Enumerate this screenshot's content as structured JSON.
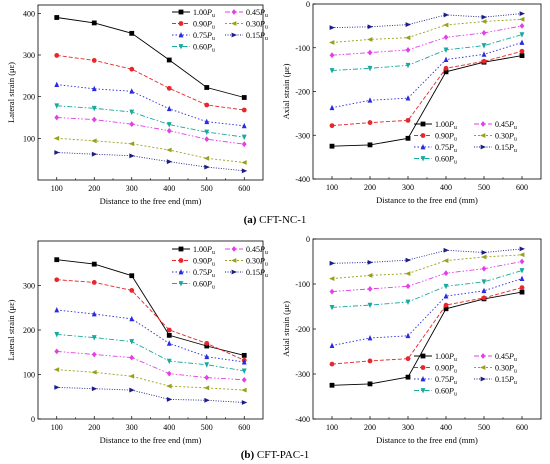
{
  "legend_labels": [
    "1.00",
    "0.90",
    "0.75",
    "0.60",
    "0.45",
    "0.30",
    "0.15"
  ],
  "legend_symbol": "P",
  "legend_subscript": "u",
  "styles": [
    {
      "color": "#000000",
      "dash": "",
      "marker": "square"
    },
    {
      "color": "#e8262b",
      "dash": "4,2",
      "marker": "circle"
    },
    {
      "color": "#2a2ae0",
      "dash": "1.5,2",
      "marker": "triangle"
    },
    {
      "color": "#16a99c",
      "dash": "5,2,1.5,2",
      "marker": "tri-down"
    },
    {
      "color": "#e23fe6",
      "dash": "5,2,1.5,2,1.5,2",
      "marker": "diamond"
    },
    {
      "color": "#9aa01a",
      "dash": "2,2",
      "marker": "tri-left"
    },
    {
      "color": "#1c1c8a",
      "dash": "1,1.5",
      "marker": "tri-right"
    }
  ],
  "captions": [
    {
      "label": "(a)",
      "text": "CFT-NC-1"
    },
    {
      "label": "(b)",
      "text": "CFT-PAC-1"
    }
  ],
  "chart_data": [
    {
      "type": "line",
      "xlabel": "Distance to the free end (mm)",
      "ylabel": "Lateral strain (με)",
      "x": [
        100,
        200,
        300,
        400,
        500,
        600
      ],
      "xticks": [
        "100",
        "200",
        "300",
        "400",
        "500",
        "600"
      ],
      "yticks": [
        "100",
        "200",
        "300",
        "400"
      ],
      "ylim": [
        0,
        420
      ],
      "legend": "top-right",
      "series": [
        {
          "values": [
            390,
            377,
            352,
            288,
            222,
            198
          ]
        },
        {
          "values": [
            299,
            287,
            266,
            220,
            180,
            168
          ]
        },
        {
          "values": [
            229,
            219,
            213,
            171,
            140,
            130
          ]
        },
        {
          "values": [
            178,
            172,
            163,
            133,
            115,
            103
          ]
        },
        {
          "values": [
            150,
            145,
            134,
            118,
            98,
            86
          ]
        },
        {
          "values": [
            100,
            94,
            87,
            72,
            52,
            42
          ]
        },
        {
          "values": [
            66,
            62,
            58,
            44,
            31,
            22
          ]
        }
      ]
    },
    {
      "type": "line",
      "xlabel": "Distance to the free end (mm)",
      "ylabel": "Axial strain (με)",
      "x": [
        100,
        200,
        300,
        400,
        500,
        600
      ],
      "xticks": [
        "100",
        "200",
        "300",
        "400",
        "500",
        "600"
      ],
      "yticks": [
        "0",
        "-100",
        "-200",
        "-300",
        "-400"
      ],
      "ylim": [
        -400,
        0
      ],
      "legend": "top-left",
      "series": [
        {
          "values": [
            -325,
            -322,
            -307,
            -155,
            -133,
            -118
          ]
        },
        {
          "values": [
            -278,
            -271,
            -266,
            -147,
            -131,
            -108
          ]
        },
        {
          "values": [
            -237,
            -220,
            -215,
            -127,
            -115,
            -88
          ]
        },
        {
          "values": [
            -152,
            -147,
            -140,
            -105,
            -95,
            -70
          ]
        },
        {
          "values": [
            -117,
            -111,
            -105,
            -76,
            -66,
            -50
          ]
        },
        {
          "values": [
            -88,
            -81,
            -77,
            -48,
            -40,
            -35
          ]
        },
        {
          "values": [
            -54,
            -52,
            -47,
            -25,
            -30,
            -22
          ]
        }
      ]
    },
    {
      "type": "line",
      "xlabel": "Distance to the free end (mm)",
      "ylabel": "Lateral strain (με)",
      "x": [
        100,
        200,
        300,
        400,
        500,
        600
      ],
      "xticks": [
        "100",
        "200",
        "300",
        "400",
        "500",
        "600"
      ],
      "yticks": [
        "0",
        "100",
        "200",
        "300"
      ],
      "ylim": [
        0,
        400
      ],
      "legend": "top-right",
      "series": [
        {
          "values": [
            358,
            348,
            322,
            188,
            164,
            143
          ]
        },
        {
          "values": [
            313,
            307,
            289,
            200,
            170,
            132
          ]
        },
        {
          "values": [
            245,
            236,
            225,
            170,
            140,
            128
          ]
        },
        {
          "values": [
            190,
            183,
            174,
            130,
            122,
            108
          ]
        },
        {
          "values": [
            152,
            145,
            138,
            102,
            93,
            88
          ]
        },
        {
          "values": [
            111,
            105,
            96,
            74,
            70,
            65
          ]
        },
        {
          "values": [
            71,
            68,
            65,
            44,
            42,
            37
          ]
        }
      ]
    },
    {
      "type": "line",
      "xlabel": "Distance to the free end (mm)",
      "ylabel": "Axial strain (με)",
      "x": [
        100,
        200,
        300,
        400,
        500,
        600
      ],
      "xticks": [
        "100",
        "200",
        "300",
        "400",
        "500",
        "600"
      ],
      "yticks": [
        "0",
        "-100",
        "-200",
        "-300",
        "-400"
      ],
      "ylim": [
        -400,
        0
      ],
      "legend": "bottom-right",
      "series": [
        {
          "values": [
            -325,
            -322,
            -307,
            -155,
            -133,
            -118
          ]
        },
        {
          "values": [
            -278,
            -271,
            -266,
            -147,
            -131,
            -108
          ]
        },
        {
          "values": [
            -237,
            -220,
            -215,
            -127,
            -115,
            -88
          ]
        },
        {
          "values": [
            -152,
            -147,
            -140,
            -105,
            -95,
            -70
          ]
        },
        {
          "values": [
            -117,
            -111,
            -105,
            -76,
            -66,
            -50
          ]
        },
        {
          "values": [
            -88,
            -81,
            -77,
            -48,
            -40,
            -35
          ]
        },
        {
          "values": [
            -54,
            -52,
            -47,
            -25,
            -30,
            -22
          ]
        }
      ]
    }
  ]
}
